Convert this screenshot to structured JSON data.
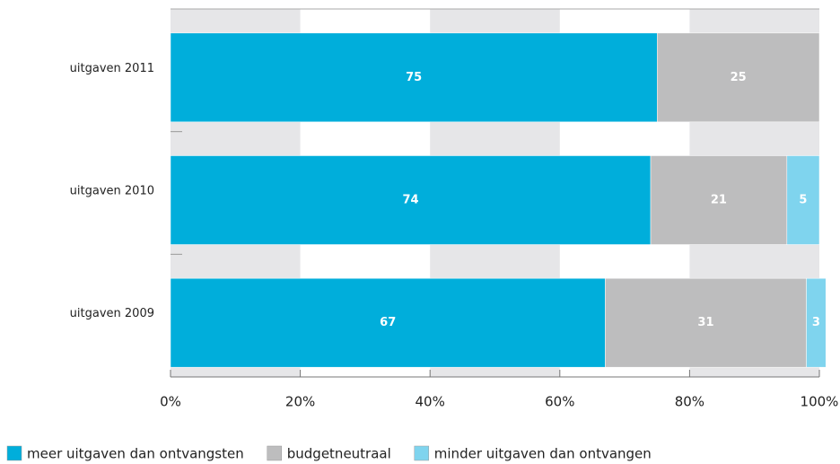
{
  "chart_data": {
    "type": "stacked_barh",
    "categories": [
      "uitgaven 2011",
      "uitgaven 2010",
      "uitgaven 2009"
    ],
    "series": [
      {
        "name": "meer uitgaven dan ontvangsten",
        "color": "#00aedb",
        "values": [
          75,
          74,
          67
        ]
      },
      {
        "name": "budgetneutraal",
        "color": "#bdbdbe",
        "values": [
          25,
          21,
          31
        ]
      },
      {
        "name": "minder uitgaven dan ontvangen",
        "color": "#7fd4ee",
        "values": [
          null,
          5,
          3
        ]
      }
    ],
    "xlim": [
      0,
      100
    ],
    "xticks": [
      {
        "value": 0,
        "label": "0%"
      },
      {
        "value": 20,
        "label": "20%"
      },
      {
        "value": 40,
        "label": "40%"
      },
      {
        "value": 60,
        "label": "60%"
      },
      {
        "value": 80,
        "label": "80%"
      },
      {
        "value": 100,
        "label": "100%"
      }
    ],
    "band_color": "#e6e6e8",
    "legend": "bottom-left"
  }
}
